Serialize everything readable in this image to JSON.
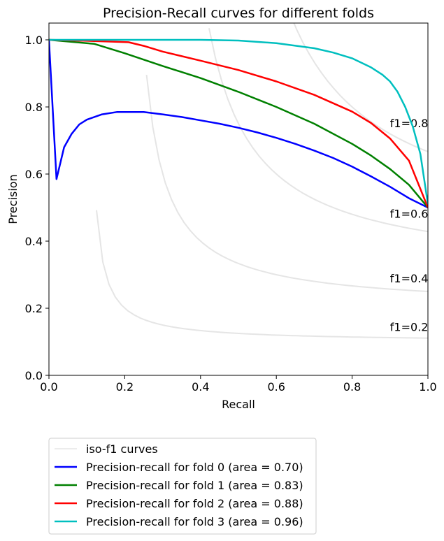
{
  "chart_data": {
    "type": "line",
    "title": "Precision-Recall curves for different folds",
    "xlabel": "Recall",
    "ylabel": "Precision",
    "xlim": [
      0.0,
      1.0
    ],
    "ylim": [
      0.0,
      1.05
    ],
    "xticks": [
      "0.0",
      "0.2",
      "0.4",
      "0.6",
      "0.8",
      "1.0"
    ],
    "yticks": [
      "0.0",
      "0.2",
      "0.4",
      "0.6",
      "0.8",
      "1.0"
    ],
    "grid": false,
    "legend_placement": "below-plot",
    "iso_f1": {
      "legend_label": "iso-f1 curves",
      "color": "#e5e5e5",
      "levels": [
        0.2,
        0.4,
        0.6,
        0.8
      ],
      "labels": [
        "f1=0.2",
        "f1=0.4",
        "f1=0.6",
        "f1=0.8"
      ]
    },
    "series": [
      {
        "name": "Precision-recall for fold 0 (area = 0.70)",
        "color": "#0000ff",
        "points": [
          [
            0.0,
            1.0
          ],
          [
            0.02,
            0.585
          ],
          [
            0.04,
            0.68
          ],
          [
            0.06,
            0.72
          ],
          [
            0.08,
            0.748
          ],
          [
            0.1,
            0.762
          ],
          [
            0.14,
            0.778
          ],
          [
            0.18,
            0.785
          ],
          [
            0.25,
            0.785
          ],
          [
            0.3,
            0.778
          ],
          [
            0.35,
            0.77
          ],
          [
            0.4,
            0.76
          ],
          [
            0.45,
            0.75
          ],
          [
            0.5,
            0.738
          ],
          [
            0.55,
            0.724
          ],
          [
            0.6,
            0.708
          ],
          [
            0.65,
            0.69
          ],
          [
            0.7,
            0.67
          ],
          [
            0.75,
            0.648
          ],
          [
            0.8,
            0.622
          ],
          [
            0.85,
            0.593
          ],
          [
            0.9,
            0.562
          ],
          [
            0.95,
            0.528
          ],
          [
            1.0,
            0.5
          ]
        ]
      },
      {
        "name": "Precision-recall for fold 1 (area = 0.83)",
        "color": "#008000",
        "points": [
          [
            0.0,
            1.0
          ],
          [
            0.05,
            0.995
          ],
          [
            0.12,
            0.988
          ],
          [
            0.2,
            0.96
          ],
          [
            0.3,
            0.922
          ],
          [
            0.4,
            0.886
          ],
          [
            0.5,
            0.845
          ],
          [
            0.6,
            0.8
          ],
          [
            0.7,
            0.75
          ],
          [
            0.8,
            0.69
          ],
          [
            0.85,
            0.655
          ],
          [
            0.9,
            0.615
          ],
          [
            0.95,
            0.568
          ],
          [
            1.0,
            0.5
          ]
        ]
      },
      {
        "name": "Precision-recall for fold 2 (area = 0.88)",
        "color": "#ff0000",
        "points": [
          [
            0.0,
            1.0
          ],
          [
            0.1,
            0.997
          ],
          [
            0.21,
            0.993
          ],
          [
            0.25,
            0.982
          ],
          [
            0.3,
            0.965
          ],
          [
            0.4,
            0.938
          ],
          [
            0.5,
            0.91
          ],
          [
            0.6,
            0.876
          ],
          [
            0.7,
            0.836
          ],
          [
            0.8,
            0.786
          ],
          [
            0.85,
            0.752
          ],
          [
            0.9,
            0.706
          ],
          [
            0.95,
            0.64
          ],
          [
            1.0,
            0.5
          ]
        ]
      },
      {
        "name": "Precision-recall for fold 3 (area = 0.96)",
        "color": "#00bfbf",
        "points": [
          [
            0.0,
            1.0
          ],
          [
            0.2,
            1.0
          ],
          [
            0.4,
            1.0
          ],
          [
            0.5,
            0.998
          ],
          [
            0.6,
            0.99
          ],
          [
            0.7,
            0.975
          ],
          [
            0.75,
            0.962
          ],
          [
            0.8,
            0.945
          ],
          [
            0.85,
            0.918
          ],
          [
            0.88,
            0.896
          ],
          [
            0.9,
            0.876
          ],
          [
            0.92,
            0.845
          ],
          [
            0.94,
            0.8
          ],
          [
            0.96,
            0.742
          ],
          [
            0.98,
            0.66
          ],
          [
            1.0,
            0.51
          ]
        ]
      }
    ]
  }
}
